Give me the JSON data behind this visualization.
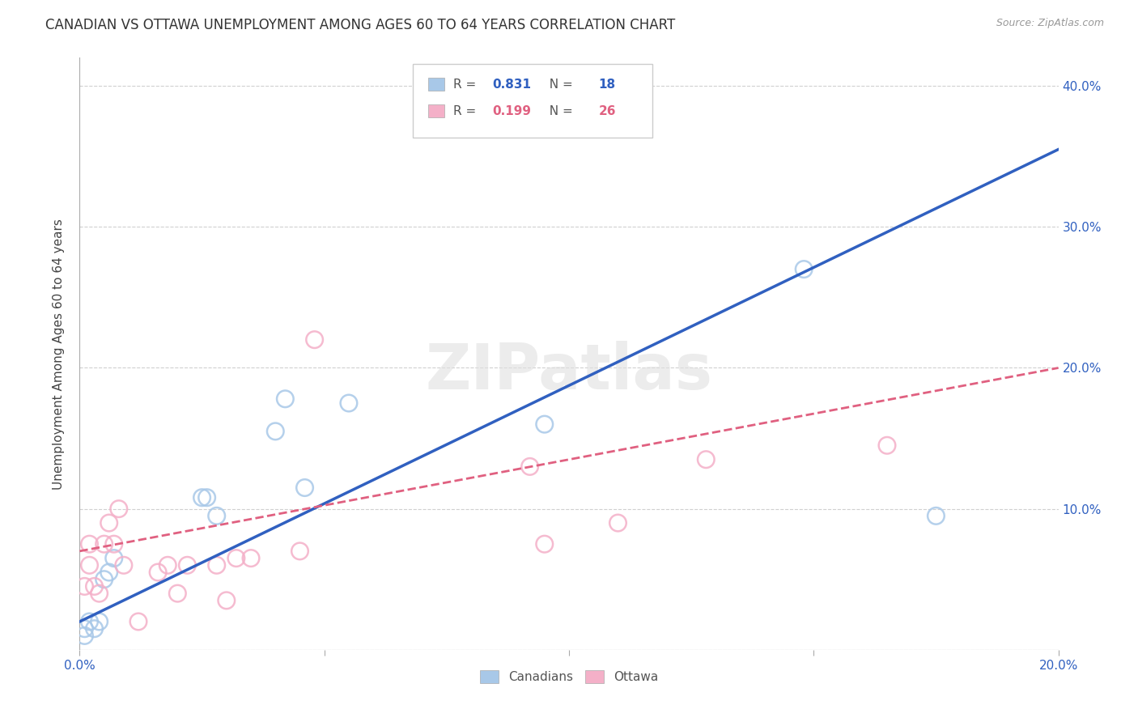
{
  "title": "CANADIAN VS OTTAWA UNEMPLOYMENT AMONG AGES 60 TO 64 YEARS CORRELATION CHART",
  "source": "Source: ZipAtlas.com",
  "ylabel": "Unemployment Among Ages 60 to 64 years",
  "xlim": [
    0.0,
    0.2
  ],
  "ylim": [
    0.0,
    0.42
  ],
  "xticks": [
    0.0,
    0.05,
    0.1,
    0.15,
    0.2
  ],
  "yticks": [
    0.0,
    0.1,
    0.2,
    0.3,
    0.4
  ],
  "ytick_labels_right": [
    "",
    "10.0%",
    "20.0%",
    "30.0%",
    "40.0%"
  ],
  "canadians_R": "0.831",
  "canadians_N": "18",
  "ottawa_R": "0.199",
  "ottawa_N": "26",
  "canadians_color": "#a8c8e8",
  "ottawa_color": "#f4b0c8",
  "canadians_line_color": "#3060c0",
  "ottawa_line_color": "#e06080",
  "background_color": "#ffffff",
  "watermark": "ZIPatlas",
  "canadians_x": [
    0.001,
    0.001,
    0.002,
    0.003,
    0.004,
    0.005,
    0.006,
    0.007,
    0.025,
    0.026,
    0.028,
    0.04,
    0.042,
    0.046,
    0.055,
    0.095,
    0.148,
    0.175
  ],
  "canadians_y": [
    0.01,
    0.015,
    0.02,
    0.015,
    0.02,
    0.05,
    0.055,
    0.065,
    0.108,
    0.108,
    0.095,
    0.155,
    0.178,
    0.115,
    0.175,
    0.16,
    0.27,
    0.095
  ],
  "ottawa_x": [
    0.001,
    0.002,
    0.002,
    0.003,
    0.004,
    0.005,
    0.006,
    0.007,
    0.008,
    0.009,
    0.012,
    0.016,
    0.018,
    0.02,
    0.022,
    0.028,
    0.03,
    0.032,
    0.035,
    0.045,
    0.048,
    0.092,
    0.095,
    0.11,
    0.128,
    0.165
  ],
  "ottawa_y": [
    0.045,
    0.06,
    0.075,
    0.045,
    0.04,
    0.075,
    0.09,
    0.075,
    0.1,
    0.06,
    0.02,
    0.055,
    0.06,
    0.04,
    0.06,
    0.06,
    0.035,
    0.065,
    0.065,
    0.07,
    0.22,
    0.13,
    0.075,
    0.09,
    0.135,
    0.145
  ],
  "canadians_line_x0": 0.0,
  "canadians_line_y0": 0.02,
  "canadians_line_x1": 0.2,
  "canadians_line_y1": 0.355,
  "ottawa_line_x0": 0.0,
  "ottawa_line_y0": 0.07,
  "ottawa_line_x1": 0.2,
  "ottawa_line_y1": 0.2,
  "title_fontsize": 12,
  "axis_label_fontsize": 11,
  "tick_fontsize": 11
}
